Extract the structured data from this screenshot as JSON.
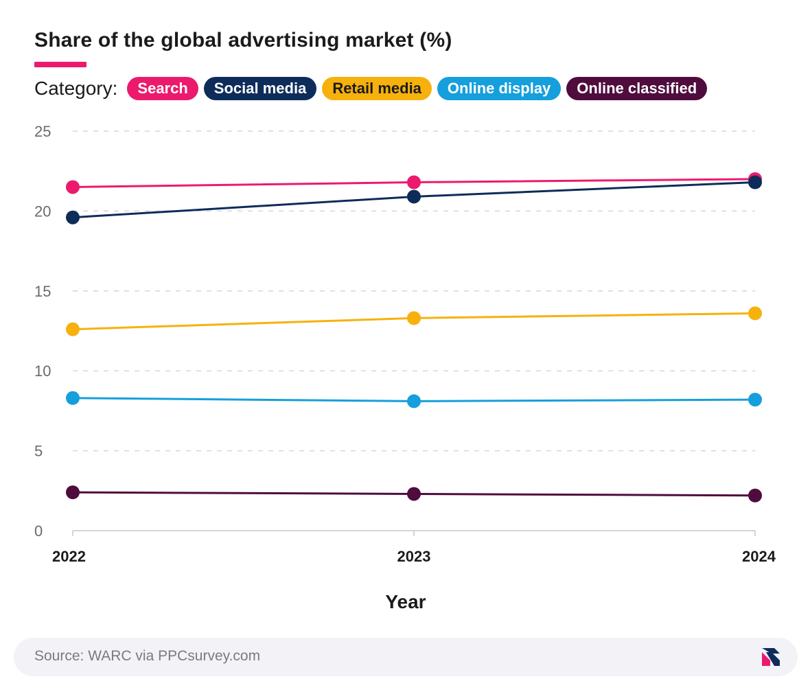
{
  "title": "Share of the global advertising market (%)",
  "legend_label": "Category:",
  "footer": {
    "source": "Source: WARC via PPCsurvey.com",
    "logo_icon": "ppcsurvey-logo-icon"
  },
  "chart_data": {
    "type": "line",
    "xlabel": "Year",
    "ylabel": "",
    "x": [
      "2022",
      "2023",
      "2024"
    ],
    "ylim": [
      0,
      25
    ],
    "yticks": [
      0,
      5,
      10,
      15,
      20,
      25
    ],
    "grid": true,
    "legend_position": "top",
    "series": [
      {
        "name": "Search",
        "color": "#ec1a6c",
        "text_color": "#ffffff",
        "values": [
          21.5,
          21.8,
          22.0
        ]
      },
      {
        "name": "Social media",
        "color": "#0e2c5a",
        "text_color": "#ffffff",
        "values": [
          19.6,
          20.9,
          21.8
        ]
      },
      {
        "name": "Retail media",
        "color": "#f7b10d",
        "text_color": "#1b1b1b",
        "values": [
          12.6,
          13.3,
          13.6
        ]
      },
      {
        "name": "Online display",
        "color": "#159fdc",
        "text_color": "#ffffff",
        "values": [
          8.3,
          8.1,
          8.2
        ]
      },
      {
        "name": "Online classified",
        "color": "#4f0c3d",
        "text_color": "#ffffff",
        "values": [
          2.4,
          2.3,
          2.2
        ]
      }
    ]
  }
}
